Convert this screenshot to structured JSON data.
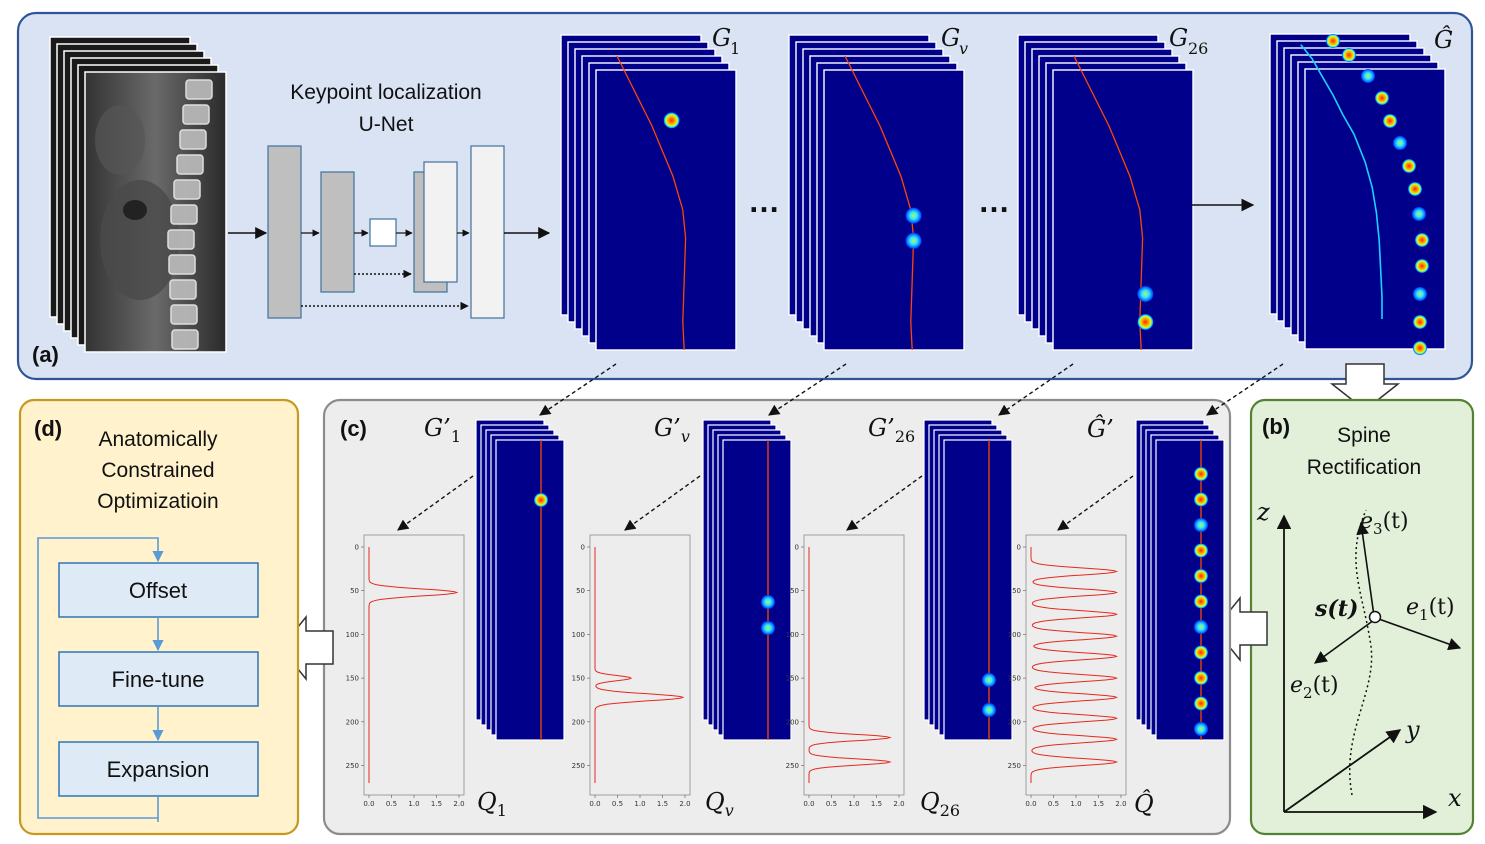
{
  "panel_a": {
    "label": "(a)",
    "unet_title_line1": "Keypoint localization",
    "unet_title_line2": "U-Net",
    "ellipsis": "…",
    "heatmap_labels": [
      {
        "base": "G",
        "sub": "1"
      },
      {
        "base": "G",
        "sub": "v"
      },
      {
        "base": "G",
        "sub": "26"
      }
    ],
    "combined_label": "Ĝ"
  },
  "panel_b": {
    "label": "(b)",
    "title_line1": "Spine",
    "title_line2": "Rectification",
    "axis_z": "z",
    "axis_y": "y",
    "axis_x": "x",
    "curve_point": "s(t)",
    "vectors": [
      {
        "base": "e",
        "sub": "3",
        "arg": "(t)"
      },
      {
        "base": "e",
        "sub": "1",
        "arg": "(t)"
      },
      {
        "base": "e",
        "sub": "2",
        "arg": "(t)"
      }
    ]
  },
  "panel_c": {
    "label": "(c)",
    "rectified_labels": [
      {
        "base": "G’",
        "sub": "1"
      },
      {
        "base": "G’",
        "sub": "v"
      },
      {
        "base": "G’",
        "sub": "26"
      }
    ],
    "rectified_combined_label": "Ĝ’",
    "profile_labels": [
      {
        "base": "Q",
        "sub": "1"
      },
      {
        "base": "Q",
        "sub": "v"
      },
      {
        "base": "Q",
        "sub": "26"
      }
    ],
    "profile_combined_label": "Q̂",
    "plot_y_ticks": [
      "0",
      "50",
      "100",
      "150",
      "200",
      "250"
    ],
    "plot_x_ticks": [
      "0.0",
      "0.5",
      "1.0",
      "1.5",
      "2.0"
    ]
  },
  "panel_d": {
    "label": "(d)",
    "title_line1": "Anatomically",
    "title_line2": "Constrained",
    "title_line3": "Optimizatioin",
    "steps": [
      "Offset",
      "Fine-tune",
      "Expansion"
    ]
  },
  "colors": {
    "panel_a_bg": "#dae3f3",
    "panel_a_border": "#2f5597",
    "panel_b_bg": "#e2efd9",
    "panel_b_border": "#548235",
    "panel_c_bg": "#ededed",
    "panel_c_border": "#8c8c8c",
    "panel_d_bg": "#fff2cc",
    "panel_d_border": "#c49a20",
    "heatmap_bg": "#00008b",
    "spine_line": "#ff4500",
    "plot_line": "#e8281e",
    "step_box": "#deebf7",
    "step_border": "#2e75b6"
  }
}
